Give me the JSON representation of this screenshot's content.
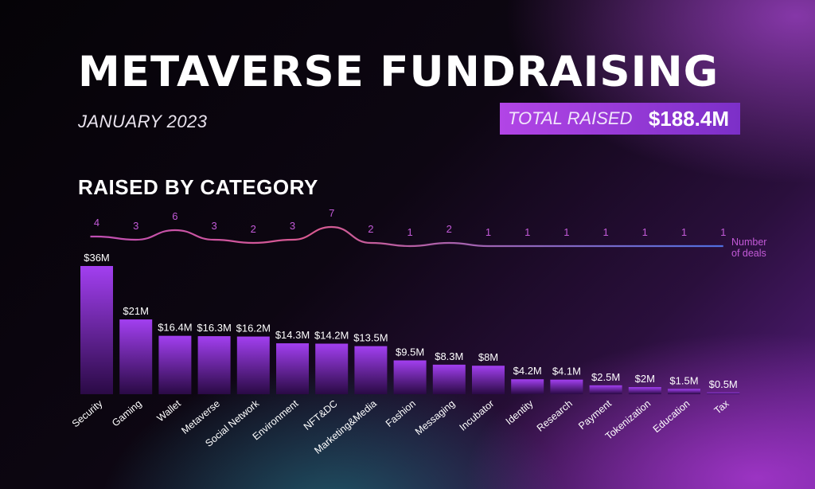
{
  "header": {
    "title": "METAVERSE FUNDRAISING",
    "subtitle": "JANUARY 2023",
    "total_label": "TOTAL RAISED",
    "total_value": "$188.4M",
    "section_title": "RAISED BY CATEGORY"
  },
  "colors": {
    "bar_top": "#a23ff0",
    "bar_bottom": "#2a0a45",
    "line_start": "#c04fb4",
    "line_mid": "#d85a90",
    "line_end": "#4f6fe0",
    "deal_label": "#c35ad8",
    "label_text": "#ffffff"
  },
  "chart_data": {
    "type": "bar",
    "categories": [
      "Security",
      "Gaming",
      "Wallet",
      "Metaverse",
      "Social Network",
      "Environment",
      "NFT&DC",
      "Marketing&Media",
      "Fashion",
      "Messaging",
      "Incubator",
      "Identity",
      "Research",
      "Payment",
      "Tokenization",
      "Education",
      "Tax"
    ],
    "values": [
      36,
      21,
      16.4,
      16.3,
      16.2,
      14.3,
      14.2,
      13.5,
      9.5,
      8.3,
      8,
      4.2,
      4.1,
      2.5,
      2,
      1.5,
      0.5
    ],
    "value_labels": [
      "$36M",
      "$21M",
      "$16.4M",
      "$16.3M",
      "$16.2M",
      "$14.3M",
      "$14.2M",
      "$13.5M",
      "$9.5M",
      "$8.3M",
      "$8M",
      "$4.2M",
      "$4.1M",
      "$2.5M",
      "$2M",
      "$1.5M",
      "$0.5M"
    ],
    "deals": [
      4,
      3,
      6,
      3,
      2,
      3,
      7,
      2,
      1,
      2,
      1,
      1,
      1,
      1,
      1,
      1,
      1
    ],
    "deals_legend": [
      "Number",
      "of deals"
    ],
    "unit": "$M"
  }
}
